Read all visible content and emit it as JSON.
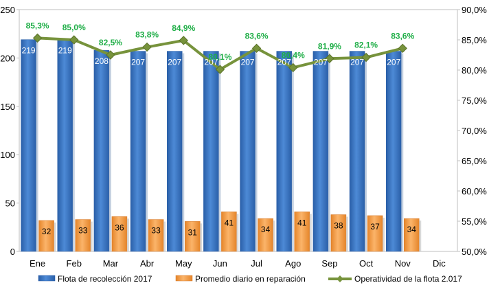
{
  "chart_data": {
    "type": "bar",
    "categories": [
      "Ene",
      "Feb",
      "Mar",
      "Abr",
      "May",
      "Jun",
      "Jul",
      "Ago",
      "Sep",
      "Oct",
      "Nov",
      "Dic"
    ],
    "y_left": {
      "min": 0,
      "max": 250,
      "ticks": [
        "0",
        "50",
        "100",
        "150",
        "200",
        "250"
      ]
    },
    "y_right": {
      "min": 50,
      "max": 90,
      "ticks": [
        "50,0%",
        "55,0%",
        "60,0%",
        "65,0%",
        "70,0%",
        "75,0%",
        "80,0%",
        "85,0%",
        "90,0%"
      ]
    },
    "series": [
      {
        "name": "Flota de recolección 2017",
        "type": "bar",
        "axis": "left",
        "color": "#3a78c8",
        "values": [
          219,
          219,
          208,
          207,
          207,
          207,
          207,
          207,
          207,
          207,
          207,
          null
        ],
        "labels": [
          "219",
          "219",
          "208",
          "207",
          "207",
          "207",
          "207",
          "207",
          "207",
          "207",
          "207",
          ""
        ]
      },
      {
        "name": "Promedio diario en reparación",
        "type": "bar",
        "axis": "left",
        "color": "#f79b3e",
        "values": [
          32,
          33,
          36,
          33,
          31,
          41,
          34,
          41,
          38,
          37,
          34,
          null
        ],
        "labels": [
          "32",
          "33",
          "36",
          "33",
          "31",
          "41",
          "34",
          "41",
          "38",
          "37",
          "34",
          ""
        ]
      },
      {
        "name": "Operatividad de la flota 2.017",
        "type": "line",
        "axis": "right",
        "color": "#77933c",
        "label_color": "#1fae47",
        "values": [
          85.3,
          85.0,
          82.5,
          83.8,
          84.9,
          80.1,
          83.6,
          80.4,
          81.9,
          82.1,
          83.6,
          null
        ],
        "labels": [
          "85,3%",
          "85,0%",
          "82,5%",
          "83,8%",
          "84,9%",
          "80,1%",
          "83,6%",
          "80,4%",
          "81,9%",
          "82,1%",
          "83,6%",
          ""
        ]
      }
    ],
    "legend": {
      "position": "bottom",
      "items": [
        "Flota de recolección 2017",
        "Promedio diario en reparación",
        "Operatividad de la flota 2.017"
      ]
    }
  }
}
